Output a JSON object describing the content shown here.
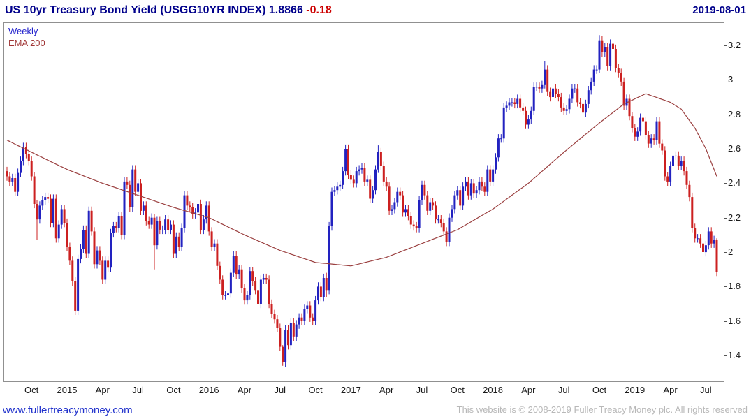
{
  "header": {
    "title": "US 10yr Treasury Bond Yield (USGG10YR INDEX)",
    "last_value": "1.8866",
    "change": "-0.18",
    "date": "2019-08-01"
  },
  "legend": {
    "timeframe": "Weekly",
    "overlay": "EMA 200"
  },
  "footer": {
    "site_link": "www.fullertreacymoney.com",
    "copyright": "This website is © 2008-2019 Fuller Treacy Money plc. All rights reserved"
  },
  "colors": {
    "title_text": "#00008b",
    "change_negative": "#cc0000",
    "up_candle": "#2222c0",
    "down_candle": "#cc2020",
    "ema_line": "#9b4040",
    "weekly_label": "#2222cc",
    "border": "#909090",
    "axis_text": "#1a1a1a",
    "link": "#2233cc",
    "copyright_text": "#b8b8b8",
    "background": "#ffffff"
  },
  "chart_data": {
    "type": "candlestick",
    "title": "US 10yr Treasury Bond Yield (USGG10YR INDEX)",
    "timeframe": "Weekly",
    "overlay": "EMA 200",
    "period_start": "2014-08",
    "period_end": "2019-08-01",
    "last_close": 1.8866,
    "change": -0.18,
    "y_axis": {
      "min": 1.25,
      "max": 3.33,
      "ticks": [
        1.4,
        1.6,
        1.8,
        2,
        2.2,
        2.4,
        2.6,
        2.8,
        3,
        3.2
      ]
    },
    "x_ticks": [
      {
        "label": "Oct",
        "week": 9
      },
      {
        "label": "2015",
        "week": 22
      },
      {
        "label": "Apr",
        "week": 35
      },
      {
        "label": "Jul",
        "week": 48
      },
      {
        "label": "Oct",
        "week": 61
      },
      {
        "label": "2016",
        "week": 74
      },
      {
        "label": "Apr",
        "week": 87
      },
      {
        "label": "Jul",
        "week": 100
      },
      {
        "label": "Oct",
        "week": 113
      },
      {
        "label": "2017",
        "week": 126
      },
      {
        "label": "Apr",
        "week": 139
      },
      {
        "label": "Jul",
        "week": 152
      },
      {
        "label": "Oct",
        "week": 165
      },
      {
        "label": "2018",
        "week": 178
      },
      {
        "label": "Apr",
        "week": 191
      },
      {
        "label": "Jul",
        "week": 204
      },
      {
        "label": "Oct",
        "week": 217
      },
      {
        "label": "2019",
        "week": 230
      },
      {
        "label": "Apr",
        "week": 243
      },
      {
        "label": "Jul",
        "week": 256
      }
    ],
    "first_open": 2.47,
    "closes": [
      2.44,
      2.41,
      2.43,
      2.35,
      2.46,
      2.53,
      2.61,
      2.57,
      2.53,
      2.44,
      2.28,
      2.19,
      2.27,
      2.3,
      2.32,
      2.31,
      2.17,
      2.31,
      2.08,
      2.16,
      2.25,
      2.17,
      2.03,
      1.95,
      1.83,
      1.66,
      1.96,
      2.02,
      2.13,
      1.99,
      2.24,
      2.12,
      1.93,
      2.01,
      1.95,
      1.84,
      1.95,
      1.91,
      2.11,
      2.15,
      2.14,
      2.21,
      2.1,
      2.41,
      2.39,
      2.26,
      2.48,
      2.35,
      2.4,
      2.24,
      2.27,
      2.18,
      2.16,
      2.2,
      2.04,
      2.18,
      2.13,
      2.13,
      2.19,
      2.13,
      2.16,
      1.99,
      2.09,
      2.03,
      2.14,
      2.33,
      2.27,
      2.26,
      2.22,
      2.23,
      2.28,
      2.13,
      2.19,
      2.27,
      2.12,
      2.03,
      2.05,
      1.92,
      1.84,
      1.75,
      1.75,
      1.76,
      1.88,
      1.98,
      1.87,
      1.9,
      1.79,
      1.72,
      1.75,
      1.89,
      1.83,
      1.78,
      1.7,
      1.84,
      1.85,
      1.84,
      1.7,
      1.64,
      1.61,
      1.56,
      1.45,
      1.36,
      1.55,
      1.46,
      1.59,
      1.51,
      1.58,
      1.62,
      1.6,
      1.67,
      1.69,
      1.62,
      1.6,
      1.72,
      1.8,
      1.74,
      1.85,
      1.78,
      2.15,
      2.35,
      2.36,
      2.38,
      2.39,
      2.47,
      2.6,
      2.45,
      2.42,
      2.4,
      2.47,
      2.48,
      2.49,
      2.41,
      2.42,
      2.31,
      2.36,
      2.48,
      2.58,
      2.5,
      2.41,
      2.38,
      2.24,
      2.25,
      2.29,
      2.35,
      2.33,
      2.23,
      2.25,
      2.21,
      2.16,
      2.15,
      2.14,
      2.3,
      2.39,
      2.33,
      2.24,
      2.29,
      2.27,
      2.19,
      2.19,
      2.17,
      2.12,
      2.06,
      2.2,
      2.25,
      2.33,
      2.36,
      2.27,
      2.38,
      2.41,
      2.33,
      2.4,
      2.34,
      2.36,
      2.41,
      2.38,
      2.35,
      2.48,
      2.41,
      2.48,
      2.55,
      2.66,
      2.66,
      2.84,
      2.85,
      2.87,
      2.87,
      2.86,
      2.89,
      2.84,
      2.82,
      2.74,
      2.77,
      2.82,
      2.96,
      2.96,
      2.95,
      2.97,
      3.06,
      2.93,
      2.9,
      2.95,
      2.92,
      2.9,
      2.84,
      2.82,
      2.83,
      2.89,
      2.95,
      2.95,
      2.87,
      2.86,
      2.81,
      2.86,
      2.94,
      2.99,
      3.06,
      3.06,
      3.23,
      3.16,
      3.19,
      3.08,
      3.21,
      3.18,
      3.07,
      3.04,
      2.99,
      2.85,
      2.89,
      2.79,
      2.72,
      2.67,
      2.7,
      2.78,
      2.76,
      2.68,
      2.63,
      2.66,
      2.65,
      2.76,
      2.63,
      2.59,
      2.44,
      2.41,
      2.5,
      2.56,
      2.56,
      2.5,
      2.53,
      2.47,
      2.39,
      2.32,
      2.14,
      2.08,
      2.08,
      2.05,
      2.0,
      2.04,
      2.12,
      2.05,
      2.07,
      1.8866
    ],
    "default_wick": 0.025,
    "wick_overrides": {
      "11": [
        0.02,
        0.12
      ],
      "54": [
        0.02,
        0.14
      ],
      "101": [
        0.01,
        0.02
      ],
      "117": [
        0.03,
        0.04
      ],
      "136": [
        0.04,
        0.02
      ],
      "197": [
        0.05,
        0.02
      ],
      "217": [
        0.03,
        0.02
      ],
      "260": [
        0.01,
        0.025
      ]
    },
    "ema": {
      "label": "EMA 200",
      "anchors": [
        [
          0,
          2.65
        ],
        [
          9,
          2.58
        ],
        [
          22,
          2.48
        ],
        [
          35,
          2.4
        ],
        [
          48,
          2.33
        ],
        [
          61,
          2.26
        ],
        [
          74,
          2.2
        ],
        [
          87,
          2.1
        ],
        [
          100,
          2.01
        ],
        [
          113,
          1.94
        ],
        [
          126,
          1.92
        ],
        [
          139,
          1.97
        ],
        [
          152,
          2.05
        ],
        [
          165,
          2.13
        ],
        [
          178,
          2.25
        ],
        [
          191,
          2.4
        ],
        [
          204,
          2.58
        ],
        [
          217,
          2.75
        ],
        [
          226,
          2.86
        ],
        [
          234,
          2.92
        ],
        [
          243,
          2.87
        ],
        [
          247,
          2.83
        ],
        [
          252,
          2.72
        ],
        [
          256,
          2.6
        ],
        [
          260,
          2.44
        ]
      ]
    }
  }
}
